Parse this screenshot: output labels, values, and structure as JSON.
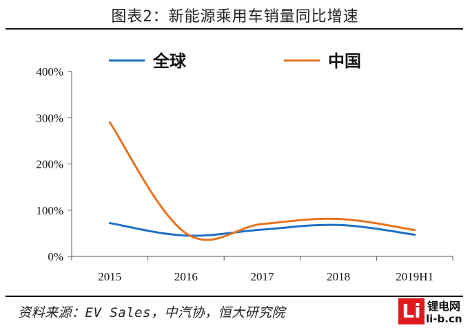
{
  "header": {
    "title": "图表2：新能源乘用车销量同比增速"
  },
  "footer": {
    "source": "资料来源：EV Sales，中汽协，恒大研究院"
  },
  "watermark": {
    "logo": "Li",
    "name_cn": "锂电网",
    "url": "li-b.cn"
  },
  "chart_data": {
    "type": "line",
    "categories": [
      "2015",
      "2016",
      "2017",
      "2018",
      "2019H1"
    ],
    "ylim": [
      0,
      400
    ],
    "yticks": [
      0,
      100,
      200,
      300,
      400
    ],
    "ytick_labels": [
      "0%",
      "100%",
      "200%",
      "300%",
      "400%"
    ],
    "legend_position": "top",
    "grid": false,
    "series": [
      {
        "name": "全球",
        "color": "#1f6fc5",
        "values": [
          72,
          45,
          58,
          68,
          47
        ]
      },
      {
        "name": "中国",
        "color": "#e8721c",
        "values": [
          290,
          50,
          70,
          81,
          57
        ]
      }
    ]
  }
}
